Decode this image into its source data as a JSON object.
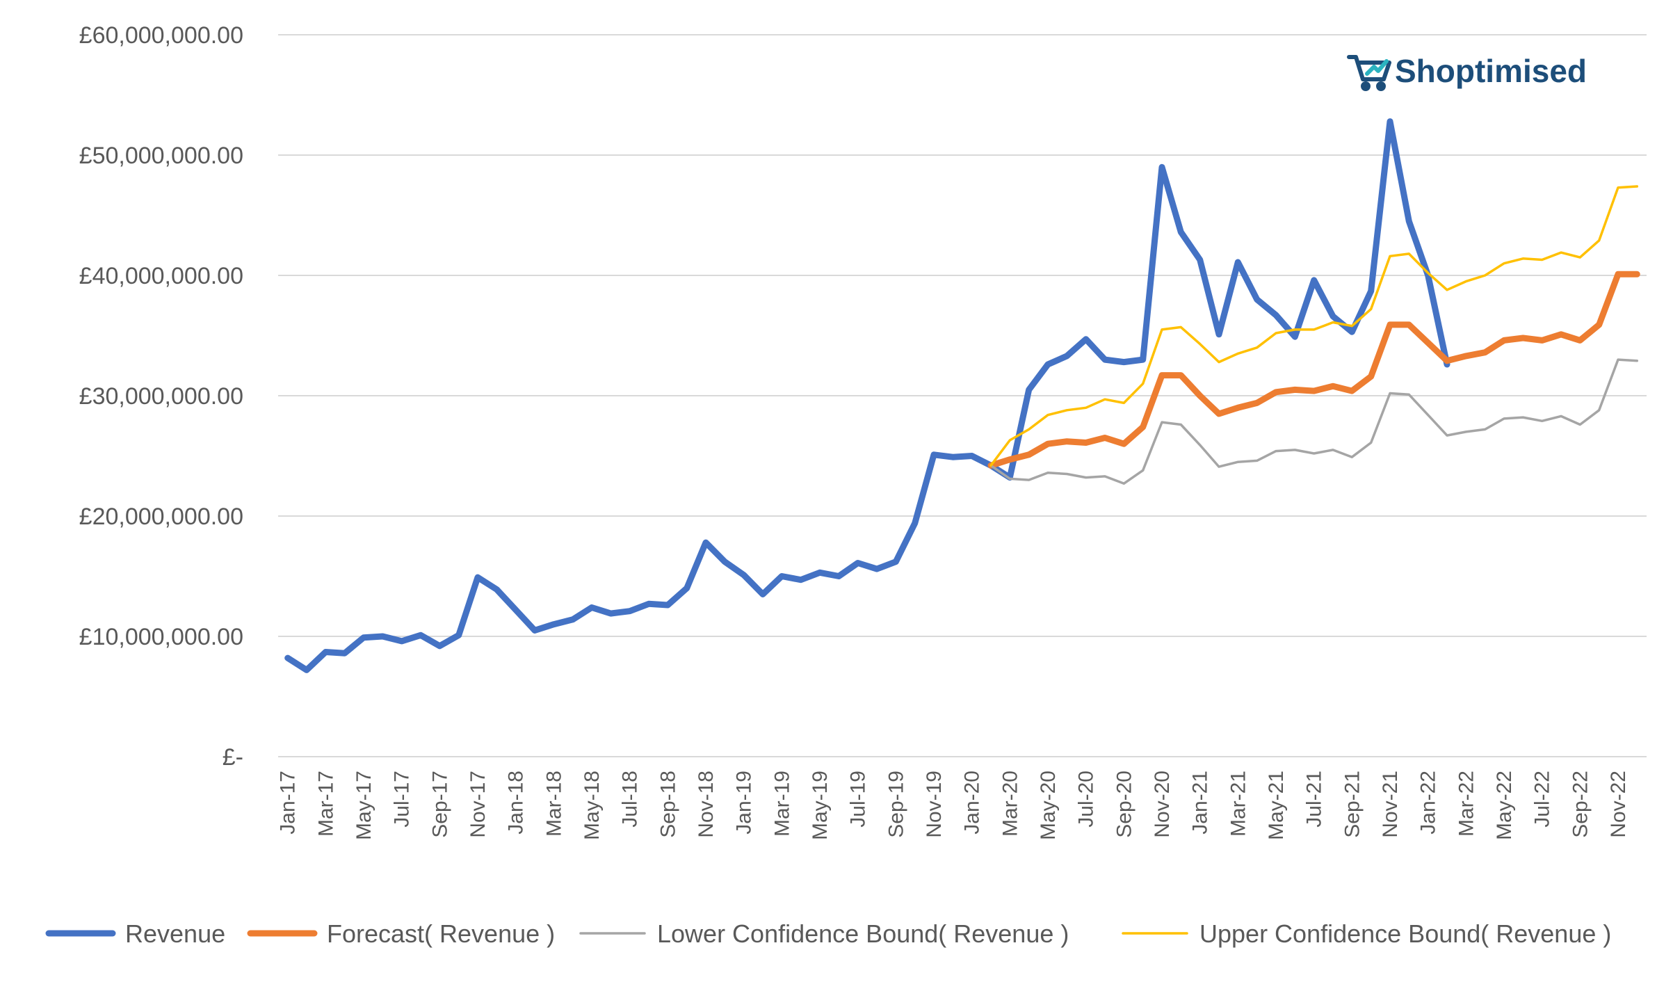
{
  "logo": {
    "text": "Shoptimised",
    "icon": "shopping-cart-icon",
    "color": "#1d4e7a"
  },
  "chart_data": {
    "type": "line",
    "title": "",
    "xlabel": "",
    "ylabel": "",
    "ylim": [
      0,
      60000000
    ],
    "yticks": [
      0,
      10000000,
      20000000,
      30000000,
      40000000,
      50000000,
      60000000
    ],
    "ytick_labels": [
      "£-",
      "£10,000,000.00",
      "£20,000,000.00",
      "£30,000,000.00",
      "£40,000,000.00",
      "£50,000,000.00",
      "£60,000,000.00"
    ],
    "grid": true,
    "legend_position": "bottom",
    "x": [
      "Jan-17",
      "Feb-17",
      "Mar-17",
      "Apr-17",
      "May-17",
      "Jun-17",
      "Jul-17",
      "Aug-17",
      "Sep-17",
      "Oct-17",
      "Nov-17",
      "Dec-17",
      "Jan-18",
      "Feb-18",
      "Mar-18",
      "Apr-18",
      "May-18",
      "Jun-18",
      "Jul-18",
      "Aug-18",
      "Sep-18",
      "Oct-18",
      "Nov-18",
      "Dec-18",
      "Jan-19",
      "Feb-19",
      "Mar-19",
      "Apr-19",
      "May-19",
      "Jun-19",
      "Jul-19",
      "Aug-19",
      "Sep-19",
      "Oct-19",
      "Nov-19",
      "Dec-19",
      "Jan-20",
      "Feb-20",
      "Mar-20",
      "Apr-20",
      "May-20",
      "Jun-20",
      "Jul-20",
      "Aug-20",
      "Sep-20",
      "Oct-20",
      "Nov-20",
      "Dec-20",
      "Jan-21",
      "Feb-21",
      "Mar-21",
      "Apr-21",
      "May-21",
      "Jun-21",
      "Jul-21",
      "Aug-21",
      "Sep-21",
      "Oct-21",
      "Nov-21",
      "Dec-21",
      "Jan-22",
      "Feb-22",
      "Mar-22",
      "Apr-22",
      "May-22",
      "Jun-22",
      "Jul-22",
      "Aug-22",
      "Sep-22",
      "Oct-22",
      "Nov-22",
      "Dec-22"
    ],
    "xtick_labels": [
      "Jan-17",
      "Mar-17",
      "May-17",
      "Jul-17",
      "Sep-17",
      "Nov-17",
      "Jan-18",
      "Mar-18",
      "May-18",
      "Jul-18",
      "Sep-18",
      "Nov-18",
      "Jan-19",
      "Mar-19",
      "May-19",
      "Jul-19",
      "Sep-19",
      "Nov-19",
      "Jan-20",
      "Mar-20",
      "May-20",
      "Jul-20",
      "Sep-20",
      "Nov-20",
      "Jan-21",
      "Mar-21",
      "May-21",
      "Jul-21",
      "Sep-21",
      "Nov-21",
      "Jan-22",
      "Mar-22",
      "May-22",
      "Jul-22",
      "Sep-22",
      "Nov-22"
    ],
    "series": [
      {
        "name": "Revenue",
        "color": "#4472c4",
        "style": "thick",
        "values": [
          8200000,
          7200000,
          8700000,
          8600000,
          9900000,
          10000000,
          9600000,
          10100000,
          9200000,
          10100000,
          14900000,
          13900000,
          12200000,
          10500000,
          11000000,
          11400000,
          12400000,
          11900000,
          12100000,
          12700000,
          12600000,
          14000000,
          17800000,
          16200000,
          15100000,
          13500000,
          15000000,
          14700000,
          15300000,
          15000000,
          16100000,
          15600000,
          16200000,
          19400000,
          25100000,
          24900000,
          25000000,
          24200000,
          23200000,
          30500000,
          32600000,
          33300000,
          34700000,
          33000000,
          32800000,
          33000000,
          49000000,
          43600000,
          41300000,
          35100000,
          41100000,
          38000000,
          36700000,
          34900000,
          39600000,
          36600000,
          35300000,
          38700000,
          52800000,
          44500000,
          40000000,
          32600000,
          null,
          null,
          null,
          null,
          null,
          null,
          null,
          null,
          null,
          null
        ]
      },
      {
        "name": "Forecast( Revenue )",
        "color": "#ed7d31",
        "style": "thick",
        "values": [
          null,
          null,
          null,
          null,
          null,
          null,
          null,
          null,
          null,
          null,
          null,
          null,
          null,
          null,
          null,
          null,
          null,
          null,
          null,
          null,
          null,
          null,
          null,
          null,
          null,
          null,
          null,
          null,
          null,
          null,
          null,
          null,
          null,
          null,
          null,
          null,
          null,
          24200000,
          24700000,
          25100000,
          26000000,
          26200000,
          26100000,
          26500000,
          26000000,
          27400000,
          31700000,
          31700000,
          30000000,
          28500000,
          29000000,
          29400000,
          30300000,
          30500000,
          30400000,
          30800000,
          30400000,
          31600000,
          35900000,
          35900000,
          34400000,
          32900000,
          33300000,
          33600000,
          34600000,
          34800000,
          34600000,
          35100000,
          34600000,
          35900000,
          40100000,
          40100000
        ]
      },
      {
        "name": "Lower Confidence Bound( Revenue )",
        "color": "#a5a5a5",
        "style": "thin",
        "values": [
          null,
          null,
          null,
          null,
          null,
          null,
          null,
          null,
          null,
          null,
          null,
          null,
          null,
          null,
          null,
          null,
          null,
          null,
          null,
          null,
          null,
          null,
          null,
          null,
          null,
          null,
          null,
          null,
          null,
          null,
          null,
          null,
          null,
          null,
          null,
          null,
          null,
          24200000,
          23100000,
          23000000,
          23600000,
          23500000,
          23200000,
          23300000,
          22700000,
          23800000,
          27800000,
          27600000,
          25900000,
          24100000,
          24500000,
          24600000,
          25400000,
          25500000,
          25200000,
          25500000,
          24900000,
          26100000,
          30200000,
          30100000,
          28400000,
          26700000,
          27000000,
          27200000,
          28100000,
          28200000,
          27900000,
          28300000,
          27600000,
          28800000,
          33000000,
          32900000
        ]
      },
      {
        "name": "Upper Confidence Bound( Revenue )",
        "color": "#ffc000",
        "style": "thin",
        "values": [
          null,
          null,
          null,
          null,
          null,
          null,
          null,
          null,
          null,
          null,
          null,
          null,
          null,
          null,
          null,
          null,
          null,
          null,
          null,
          null,
          null,
          null,
          null,
          null,
          null,
          null,
          null,
          null,
          null,
          null,
          null,
          null,
          null,
          null,
          null,
          null,
          null,
          24200000,
          26300000,
          27200000,
          28400000,
          28800000,
          29000000,
          29700000,
          29400000,
          31000000,
          35500000,
          35700000,
          34300000,
          32800000,
          33500000,
          34000000,
          35200000,
          35500000,
          35500000,
          36100000,
          35800000,
          37200000,
          41600000,
          41800000,
          40200000,
          38800000,
          39500000,
          40000000,
          41000000,
          41400000,
          41300000,
          41900000,
          41500000,
          42900000,
          47300000,
          47400000
        ]
      }
    ]
  }
}
